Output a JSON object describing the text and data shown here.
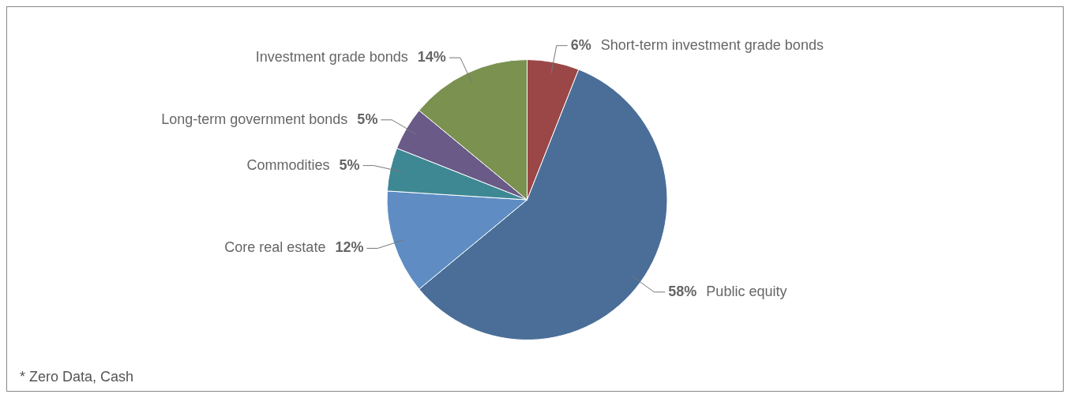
{
  "chart_data": {
    "type": "pie",
    "categories": [
      "Short-term investment grade bonds",
      "Public equity",
      "Core real estate",
      "Commodities",
      "Long-term government bonds",
      "Investment grade bonds"
    ],
    "values": [
      6,
      58,
      12,
      5,
      5,
      14
    ],
    "value_labels": [
      "6%",
      "58%",
      "12%",
      "5%",
      "5%",
      "14%"
    ],
    "colors": [
      "#9b4747",
      "#4a6e97",
      "#5f8dc3",
      "#3e8894",
      "#6a5a87",
      "#7a9150"
    ],
    "legend": false,
    "annotations": [
      "* Zero Data, Cash"
    ]
  }
}
